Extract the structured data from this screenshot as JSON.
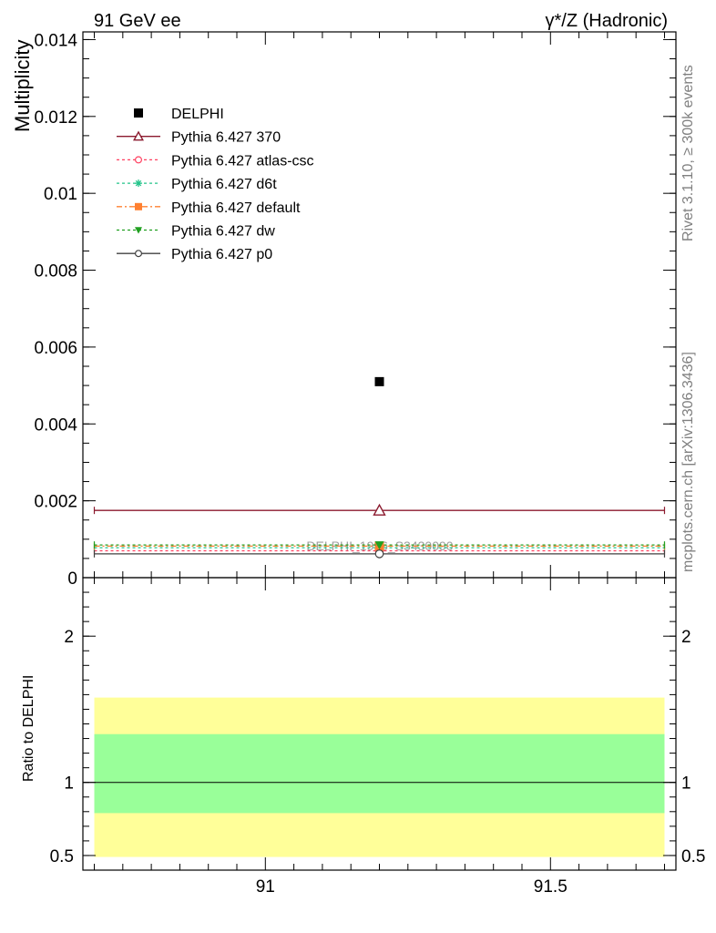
{
  "header": {
    "left": "91 GeV ee",
    "right": "γ*/Z (Hadronic)"
  },
  "side_text": {
    "rivet": "Rivet 3.1.10, ≥ 300k events",
    "mcplots": "mcplots.cern.ch [arXiv:1306.3436]"
  },
  "watermark": "DELPHI_1996_S3430090",
  "chart_data": [
    {
      "type": "scatter",
      "title": "",
      "xlabel": "",
      "ylabel": "Multiplicity",
      "xlim": [
        90.68,
        91.72
      ],
      "ylim": [
        0,
        0.0142
      ],
      "yticks": [
        {
          "v": 0,
          "label": "0"
        },
        {
          "v": 0.002,
          "label": "0.002"
        },
        {
          "v": 0.004,
          "label": "0.004"
        },
        {
          "v": 0.006,
          "label": "0.006"
        },
        {
          "v": 0.008,
          "label": "0.008"
        },
        {
          "v": 0.01,
          "label": "0.01"
        },
        {
          "v": 0.012,
          "label": "0.012"
        },
        {
          "v": 0.014,
          "label": "0.014"
        }
      ],
      "legend_position": "top-left",
      "bin": [
        90.7,
        91.7
      ],
      "x_center": 91.2,
      "series": [
        {
          "name": "DELPHI",
          "marker": "square-filled",
          "color": "#000000",
          "dash": "none",
          "y": 0.0051
        },
        {
          "name": "Pythia 6.427 370",
          "marker": "triangle-open",
          "color": "#8b1a2e",
          "dash": "solid",
          "y": 0.00175
        },
        {
          "name": "Pythia 6.427 atlas-csc",
          "marker": "circle-open",
          "color": "#ff4060",
          "dash": "3,3",
          "y": 0.0007
        },
        {
          "name": "Pythia 6.427 d6t",
          "marker": "star",
          "color": "#22c48a",
          "dash": "3,3",
          "y": 0.00078
        },
        {
          "name": "Pythia 6.427 default",
          "marker": "square-filled",
          "color": "#ff8030",
          "dash": "6,3,2,3",
          "y": 0.00082
        },
        {
          "name": "Pythia 6.427 dw",
          "marker": "triangle-down-filled",
          "color": "#20a020",
          "dash": "3,3",
          "y": 0.00085
        },
        {
          "name": "Pythia 6.427 p0",
          "marker": "circle-open",
          "color": "#404040",
          "dash": "solid",
          "y": 0.00062
        }
      ]
    },
    {
      "type": "area",
      "title": "",
      "xlabel": "",
      "ylabel": "Ratio to DELPHI",
      "xlim": [
        90.68,
        91.72
      ],
      "ylim": [
        0.4,
        2.4
      ],
      "yticks": [
        {
          "v": 0.5,
          "label": "0.5"
        },
        {
          "v": 1,
          "label": "1"
        },
        {
          "v": 2,
          "label": "2"
        }
      ],
      "xticks": [
        {
          "v": 91,
          "label": "91"
        },
        {
          "v": 91.5,
          "label": "91.5"
        }
      ],
      "bands": [
        {
          "name": "outer",
          "low": 0.49,
          "high": 1.58,
          "color": "#ffff99"
        },
        {
          "name": "inner",
          "low": 0.79,
          "high": 1.33,
          "color": "#99ff99"
        }
      ],
      "reference": 1.0
    }
  ]
}
